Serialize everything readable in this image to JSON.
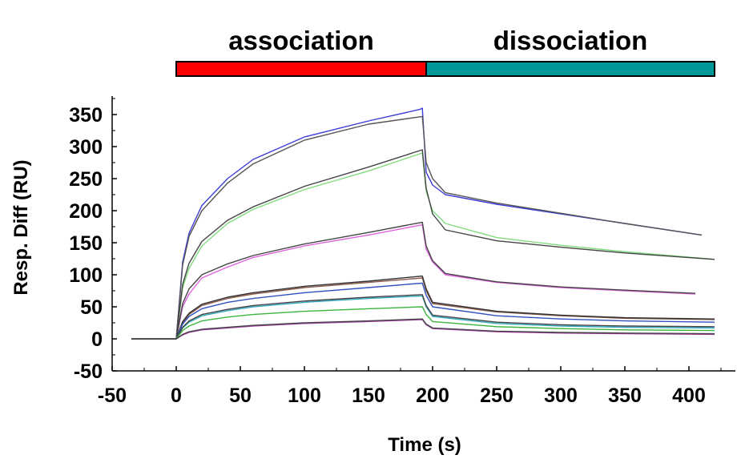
{
  "chart_data": {
    "type": "line",
    "title": "",
    "xlabel": "Time (s)",
    "ylabel": "Resp. Diff (RU)",
    "xlim": [
      -50,
      420
    ],
    "ylim": [
      -50,
      370
    ],
    "xticks": [
      -50,
      0,
      50,
      100,
      150,
      200,
      250,
      300,
      350,
      400
    ],
    "yticks": [
      -50,
      0,
      50,
      100,
      150,
      200,
      250,
      300,
      350
    ],
    "grid": false,
    "phases": [
      {
        "label": "association",
        "start": 0,
        "end": 195,
        "color": "#ff0000"
      },
      {
        "label": "dissociation",
        "start": 195,
        "end": 420,
        "color": "#009999"
      }
    ],
    "series": [
      {
        "color": "#3c3cd6",
        "values": [
          [
            -35,
            0
          ],
          [
            0,
            0
          ],
          [
            5,
            120
          ],
          [
            10,
            165
          ],
          [
            20,
            208
          ],
          [
            40,
            250
          ],
          [
            60,
            280
          ],
          [
            100,
            315
          ],
          [
            150,
            340
          ],
          [
            190,
            358
          ],
          [
            192,
            360
          ],
          [
            195,
            260
          ],
          [
            200,
            240
          ],
          [
            210,
            225
          ],
          [
            250,
            210
          ],
          [
            300,
            195
          ],
          [
            350,
            180
          ],
          [
            410,
            162
          ]
        ]
      },
      {
        "color": "#555555",
        "values": [
          [
            -35,
            0
          ],
          [
            0,
            0
          ],
          [
            5,
            115
          ],
          [
            10,
            160
          ],
          [
            20,
            200
          ],
          [
            40,
            243
          ],
          [
            60,
            273
          ],
          [
            100,
            310
          ],
          [
            150,
            335
          ],
          [
            192,
            347
          ],
          [
            195,
            275
          ],
          [
            200,
            250
          ],
          [
            210,
            228
          ],
          [
            250,
            212
          ],
          [
            300,
            196
          ],
          [
            350,
            180
          ],
          [
            410,
            162
          ]
        ]
      },
      {
        "color": "#7fdc7f",
        "values": [
          [
            -35,
            0
          ],
          [
            0,
            0
          ],
          [
            5,
            80
          ],
          [
            10,
            110
          ],
          [
            20,
            145
          ],
          [
            40,
            180
          ],
          [
            60,
            202
          ],
          [
            100,
            233
          ],
          [
            150,
            262
          ],
          [
            192,
            290
          ],
          [
            195,
            230
          ],
          [
            200,
            200
          ],
          [
            210,
            180
          ],
          [
            250,
            158
          ],
          [
            300,
            146
          ],
          [
            350,
            136
          ],
          [
            420,
            124
          ]
        ]
      },
      {
        "color": "#444444",
        "values": [
          [
            -35,
            0
          ],
          [
            0,
            0
          ],
          [
            5,
            85
          ],
          [
            10,
            118
          ],
          [
            20,
            152
          ],
          [
            40,
            185
          ],
          [
            60,
            206
          ],
          [
            100,
            238
          ],
          [
            150,
            268
          ],
          [
            192,
            295
          ],
          [
            195,
            235
          ],
          [
            200,
            195
          ],
          [
            210,
            170
          ],
          [
            250,
            153
          ],
          [
            300,
            143
          ],
          [
            350,
            134
          ],
          [
            420,
            124
          ]
        ]
      },
      {
        "color": "#e060e0",
        "values": [
          [
            -35,
            0
          ],
          [
            0,
            0
          ],
          [
            5,
            50
          ],
          [
            10,
            70
          ],
          [
            20,
            95
          ],
          [
            40,
            112
          ],
          [
            60,
            127
          ],
          [
            100,
            145
          ],
          [
            150,
            162
          ],
          [
            192,
            178
          ],
          [
            195,
            140
          ],
          [
            200,
            120
          ],
          [
            210,
            100
          ],
          [
            250,
            88
          ],
          [
            300,
            80
          ],
          [
            350,
            75
          ],
          [
            405,
            70
          ]
        ]
      },
      {
        "color": "#444444",
        "values": [
          [
            -35,
            0
          ],
          [
            0,
            0
          ],
          [
            5,
            55
          ],
          [
            10,
            78
          ],
          [
            20,
            100
          ],
          [
            40,
            117
          ],
          [
            60,
            130
          ],
          [
            100,
            148
          ],
          [
            150,
            166
          ],
          [
            192,
            182
          ],
          [
            195,
            145
          ],
          [
            200,
            122
          ],
          [
            210,
            102
          ],
          [
            250,
            89
          ],
          [
            300,
            81
          ],
          [
            350,
            76
          ],
          [
            405,
            71
          ]
        ]
      },
      {
        "color": "#8b5a4a",
        "values": [
          [
            -35,
            0
          ],
          [
            0,
            0
          ],
          [
            5,
            25
          ],
          [
            10,
            38
          ],
          [
            20,
            52
          ],
          [
            40,
            63
          ],
          [
            60,
            70
          ],
          [
            100,
            80
          ],
          [
            150,
            88
          ],
          [
            192,
            95
          ],
          [
            195,
            75
          ],
          [
            200,
            55
          ],
          [
            250,
            42
          ],
          [
            300,
            36
          ],
          [
            350,
            32
          ],
          [
            420,
            30
          ]
        ]
      },
      {
        "color": "#333333",
        "values": [
          [
            -35,
            0
          ],
          [
            0,
            0
          ],
          [
            5,
            27
          ],
          [
            10,
            40
          ],
          [
            20,
            54
          ],
          [
            40,
            65
          ],
          [
            60,
            72
          ],
          [
            100,
            82
          ],
          [
            150,
            90
          ],
          [
            192,
            98
          ],
          [
            195,
            78
          ],
          [
            200,
            57
          ],
          [
            250,
            43
          ],
          [
            300,
            37
          ],
          [
            350,
            33
          ],
          [
            420,
            31
          ]
        ]
      },
      {
        "color": "#3050c0",
        "values": [
          [
            -35,
            0
          ],
          [
            0,
            0
          ],
          [
            5,
            23
          ],
          [
            10,
            35
          ],
          [
            20,
            47
          ],
          [
            40,
            57
          ],
          [
            60,
            63
          ],
          [
            100,
            72
          ],
          [
            150,
            80
          ],
          [
            192,
            87
          ],
          [
            195,
            68
          ],
          [
            200,
            50
          ],
          [
            250,
            36
          ],
          [
            300,
            31
          ],
          [
            350,
            28
          ],
          [
            420,
            26
          ]
        ]
      },
      {
        "color": "#30a8c0",
        "values": [
          [
            -35,
            0
          ],
          [
            0,
            0
          ],
          [
            5,
            17
          ],
          [
            10,
            26
          ],
          [
            20,
            36
          ],
          [
            40,
            44
          ],
          [
            60,
            50
          ],
          [
            100,
            57
          ],
          [
            150,
            63
          ],
          [
            192,
            67
          ],
          [
            195,
            50
          ],
          [
            200,
            35
          ],
          [
            250,
            24
          ],
          [
            300,
            20
          ],
          [
            350,
            18
          ],
          [
            420,
            17
          ]
        ]
      },
      {
        "color": "#444444",
        "values": [
          [
            -35,
            0
          ],
          [
            0,
            0
          ],
          [
            5,
            18
          ],
          [
            10,
            28
          ],
          [
            20,
            38
          ],
          [
            40,
            46
          ],
          [
            60,
            52
          ],
          [
            100,
            59
          ],
          [
            150,
            65
          ],
          [
            192,
            69
          ],
          [
            195,
            52
          ],
          [
            200,
            37
          ],
          [
            250,
            26
          ],
          [
            300,
            22
          ],
          [
            350,
            20
          ],
          [
            420,
            19
          ]
        ]
      },
      {
        "color": "#3cb43c",
        "values": [
          [
            -35,
            0
          ],
          [
            0,
            0
          ],
          [
            5,
            13
          ],
          [
            10,
            20
          ],
          [
            20,
            28
          ],
          [
            40,
            34
          ],
          [
            60,
            38
          ],
          [
            100,
            43
          ],
          [
            150,
            47
          ],
          [
            192,
            50
          ],
          [
            195,
            38
          ],
          [
            200,
            27
          ],
          [
            250,
            19
          ],
          [
            300,
            16
          ],
          [
            350,
            14
          ],
          [
            420,
            13
          ]
        ]
      },
      {
        "color": "#b040b0",
        "values": [
          [
            -35,
            0
          ],
          [
            0,
            0
          ],
          [
            5,
            6
          ],
          [
            10,
            10
          ],
          [
            20,
            14
          ],
          [
            40,
            17
          ],
          [
            60,
            20
          ],
          [
            100,
            24
          ],
          [
            150,
            27
          ],
          [
            192,
            30
          ],
          [
            195,
            22
          ],
          [
            200,
            16
          ],
          [
            250,
            11
          ],
          [
            300,
            9
          ],
          [
            350,
            8
          ],
          [
            420,
            7
          ]
        ]
      },
      {
        "color": "#444444",
        "values": [
          [
            -35,
            0
          ],
          [
            0,
            0
          ],
          [
            5,
            7
          ],
          [
            10,
            11
          ],
          [
            20,
            15
          ],
          [
            40,
            18
          ],
          [
            60,
            21
          ],
          [
            100,
            25
          ],
          [
            150,
            28
          ],
          [
            192,
            31
          ],
          [
            195,
            23
          ],
          [
            200,
            17
          ],
          [
            250,
            12
          ],
          [
            300,
            10
          ],
          [
            350,
            9
          ],
          [
            420,
            8
          ]
        ]
      }
    ]
  }
}
